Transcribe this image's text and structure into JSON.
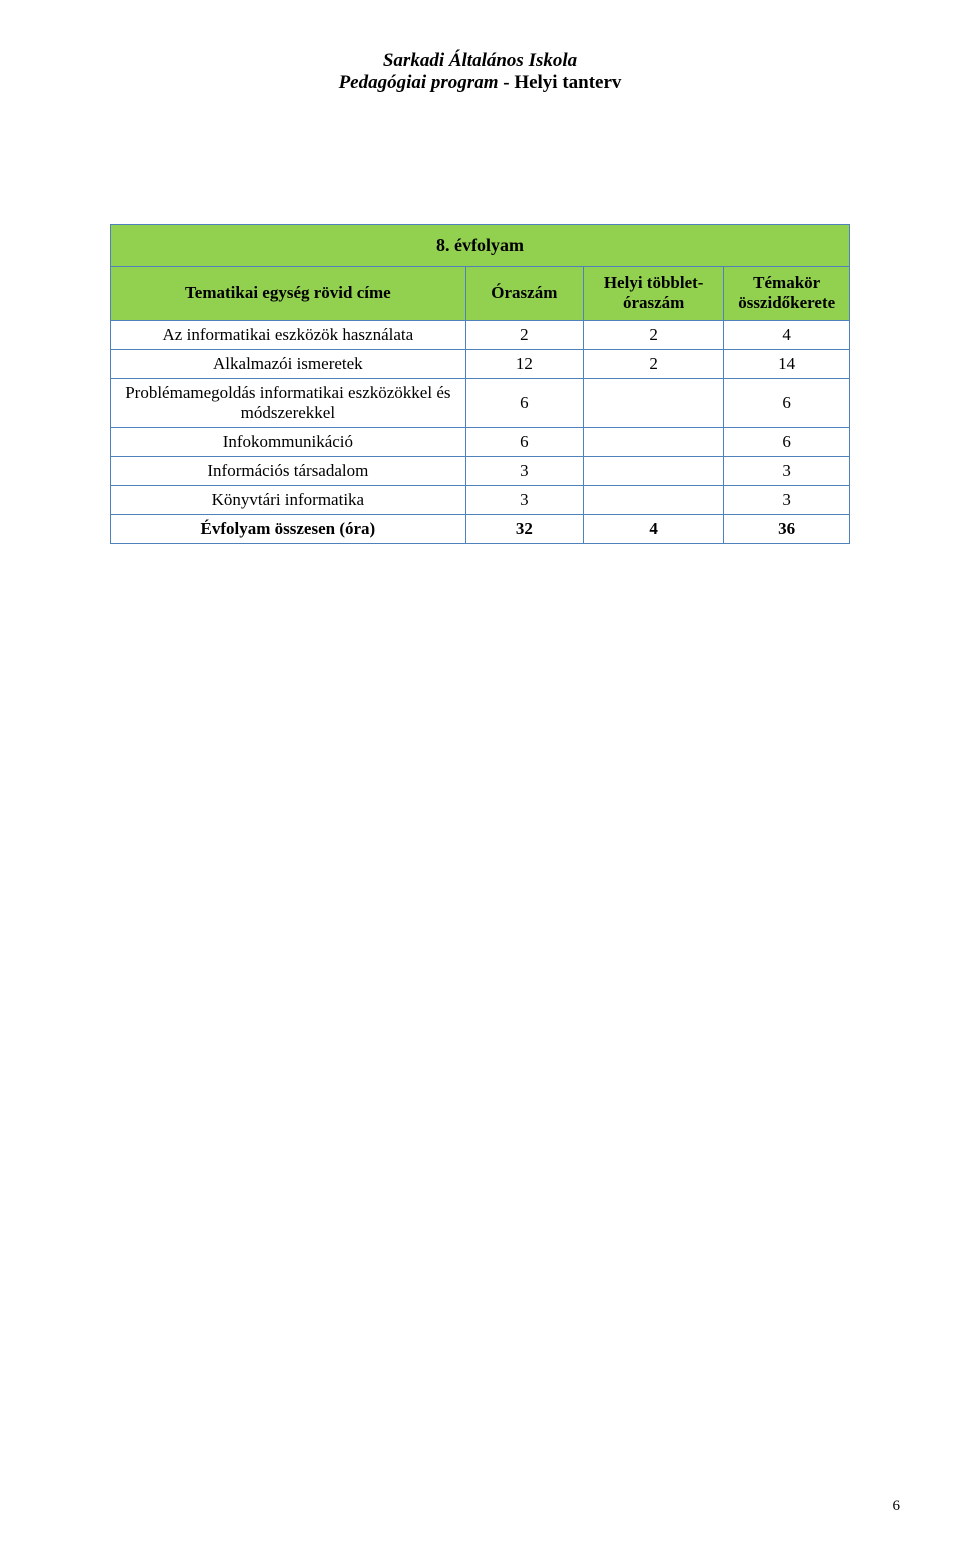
{
  "colors": {
    "table_border": "#4f81bd",
    "header_bg": "#92d050",
    "page_bg": "#ffffff",
    "text": "#000000"
  },
  "header": {
    "line1": "Sarkadi Általános Iskola",
    "line2_italic": "Pedagógiai program",
    "line2_sep": " - ",
    "line2_plain": "Helyi tanterv"
  },
  "table": {
    "title": "8. évfolyam",
    "columns": [
      "Tematikai egység rövid címe",
      "Óraszám",
      "Helyi többlet-óraszám",
      "Témakör összidőkerete"
    ],
    "col_widths_pct": [
      48,
      16,
      19,
      17
    ],
    "rows": [
      {
        "label": "Az informatikai eszközök használata",
        "c1": "2",
        "c2": "2",
        "c3": "4"
      },
      {
        "label": "Alkalmazói ismeretek",
        "c1": "12",
        "c2": "2",
        "c3": "14"
      },
      {
        "label": "Problémamegoldás informatikai eszközökkel és módszerekkel",
        "c1": "6",
        "c2": "",
        "c3": "6"
      },
      {
        "label": "Infokommunikáció",
        "c1": "6",
        "c2": "",
        "c3": "6"
      },
      {
        "label": "Információs társadalom",
        "c1": "3",
        "c2": "",
        "c3": "3"
      },
      {
        "label": "Könyvtári informatika",
        "c1": "3",
        "c2": "",
        "c3": "3"
      }
    ],
    "total": {
      "label": "Évfolyam összesen (óra)",
      "c1": "32",
      "c2": "4",
      "c3": "36"
    }
  },
  "page_number": "6"
}
